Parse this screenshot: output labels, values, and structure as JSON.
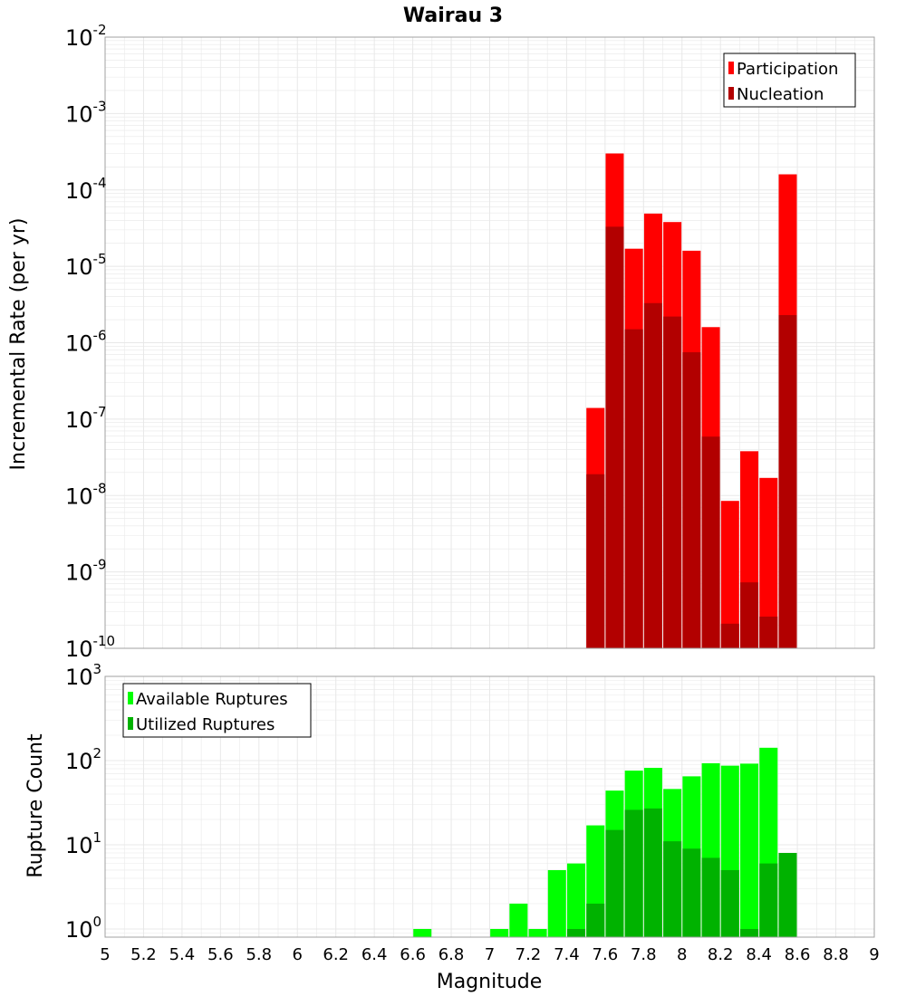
{
  "title": "Wairau 3",
  "colors": {
    "participation": "#ff0000",
    "nucleation": "#b20000",
    "available": "#00ff00",
    "utilized": "#00b200",
    "grid": "#e8e8e8",
    "frame": "#a0a0a0"
  },
  "chart_data": [
    {
      "type": "bar",
      "name": "rates",
      "title": "Wairau 3",
      "ylabel": "Incremental Rate (per yr)",
      "xlabel": "",
      "xlim": [
        5,
        9
      ],
      "ylim": [
        1e-10,
        0.01
      ],
      "yscale": "log",
      "grid": true,
      "legend_position": "top-right",
      "x": [
        7.55,
        7.65,
        7.75,
        7.85,
        7.95,
        8.05,
        8.15,
        8.25,
        8.35,
        8.45,
        8.55
      ],
      "series": [
        {
          "name": "Participation",
          "color": "#ff0000",
          "values": [
            1.4e-07,
            0.0003,
            1.7e-05,
            4.9e-05,
            3.8e-05,
            1.6e-05,
            1.6e-06,
            8.5e-09,
            3.8e-08,
            1.7e-08,
            0.00016
          ]
        },
        {
          "name": "Nucleation",
          "color": "#b20000",
          "values": [
            1.9e-08,
            3.3e-05,
            1.5e-06,
            3.3e-06,
            2.2e-06,
            7.5e-07,
            5.9e-08,
            2.1e-10,
            7.3e-10,
            2.6e-10,
            2.3e-06
          ]
        }
      ]
    },
    {
      "type": "bar",
      "name": "ruptures",
      "ylabel": "Rupture Count",
      "xlabel": "Magnitude",
      "xlim": [
        5,
        9
      ],
      "ylim": [
        0.8,
        1000
      ],
      "yscale": "log",
      "grid": true,
      "legend_position": "top-left",
      "x": [
        6.65,
        7.05,
        7.15,
        7.25,
        7.35,
        7.45,
        7.55,
        7.65,
        7.75,
        7.85,
        7.95,
        8.05,
        8.15,
        8.25,
        8.35,
        8.45,
        8.55
      ],
      "series": [
        {
          "name": "Available Ruptures",
          "color": "#00ff00",
          "values": [
            1,
            1,
            2,
            1,
            5,
            6,
            17,
            44,
            76,
            82,
            46,
            65,
            93,
            87,
            92,
            142,
            8
          ]
        },
        {
          "name": "Utilized Ruptures",
          "color": "#00b200",
          "values": [
            0,
            0,
            0,
            0,
            0,
            1,
            2,
            15,
            26,
            27,
            11,
            9,
            7,
            5,
            1,
            6,
            8
          ]
        }
      ]
    }
  ],
  "x_ticks": [
    "5",
    "5.2",
    "5.4",
    "5.6",
    "5.8",
    "6",
    "6.2",
    "6.4",
    "6.6",
    "6.8",
    "7",
    "7.2",
    "7.4",
    "7.6",
    "7.8",
    "8",
    "8.2",
    "8.4",
    "8.6",
    "8.8",
    "9"
  ],
  "top_y_ticks": [
    {
      "base": "10",
      "exp": "-2"
    },
    {
      "base": "10",
      "exp": "-3"
    },
    {
      "base": "10",
      "exp": "-4"
    },
    {
      "base": "10",
      "exp": "-5"
    },
    {
      "base": "10",
      "exp": "-6"
    },
    {
      "base": "10",
      "exp": "-7"
    },
    {
      "base": "10",
      "exp": "-8"
    },
    {
      "base": "10",
      "exp": "-9"
    },
    {
      "base": "10",
      "exp": "-10"
    }
  ],
  "bottom_y_ticks": [
    {
      "base": "10",
      "exp": "3"
    },
    {
      "base": "10",
      "exp": "2"
    },
    {
      "base": "10",
      "exp": "1"
    },
    {
      "base": "10",
      "exp": "0"
    }
  ]
}
